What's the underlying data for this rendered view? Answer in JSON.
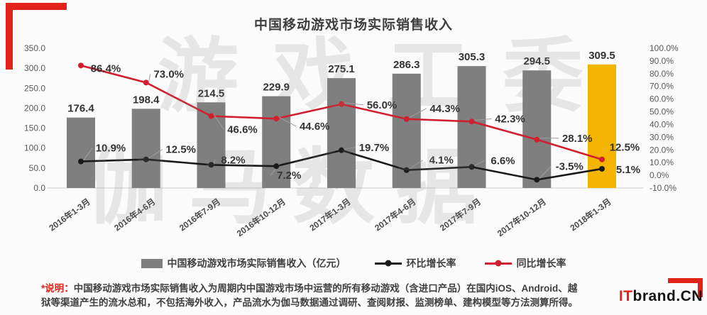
{
  "page": {
    "watermark_line1": "游戏工委",
    "watermark_line2": "伽马数据",
    "note_label": "*说明：",
    "note_line1": "中国移动游戏市场实际销售收入为周期内中国游戏市场中运营的所有移动游戏（含进口产品）在国内iOS、Android、越",
    "note_line2": "狱等渠道产生的流水总和，不包括海外收入，产品流水为伽马数据通过调研、查阅财报、监测榜单、建构模型等方法测算所得。",
    "logo_prefix": "IT",
    "logo_suffix": "brand.CN"
  },
  "colors": {
    "accent_red": "#e2231a",
    "bar_gray": "#7f7f7f",
    "bar_highlight": "#f5b400",
    "line_qoq_black": "#1a1a1a",
    "line_yoy_red": "#d02030",
    "axis_text": "#595959",
    "leader_line": "#9e9e9e"
  },
  "chart_data": {
    "type": "bar+line combo",
    "title": "中国移动游戏市场实际销售收入",
    "categories": [
      "2016年1-3月",
      "2016年4-6月",
      "2016年7-9月",
      "2016年10-12月",
      "2017年1-3月",
      "2017年4-6月",
      "2017年7-9月",
      "2017年10-12月",
      "2018年1-3月"
    ],
    "bar_series": {
      "name": "中国移动游戏市场实际销售收入（亿元）",
      "values": [
        176.4,
        198.4,
        214.5,
        229.9,
        275.1,
        286.3,
        305.3,
        294.5,
        309.5
      ],
      "axis": "left",
      "highlight_index": 8
    },
    "line_series": [
      {
        "name": "环比增长率",
        "values": [
          10.9,
          12.5,
          8.2,
          7.2,
          19.7,
          4.1,
          6.6,
          -3.5,
          5.1
        ],
        "axis": "right",
        "color_key": "line_qoq_black"
      },
      {
        "name": "同比增长率",
        "values": [
          86.4,
          73.0,
          46.6,
          44.6,
          56.0,
          44.3,
          42.3,
          28.1,
          12.5
        ],
        "axis": "right",
        "color_key": "line_yoy_red"
      }
    ],
    "left_axis": {
      "min": 0,
      "max": 350,
      "step": 50
    },
    "right_axis": {
      "min": -10,
      "max": 100,
      "step": 10
    },
    "legend_position": "bottom",
    "grid": false
  }
}
